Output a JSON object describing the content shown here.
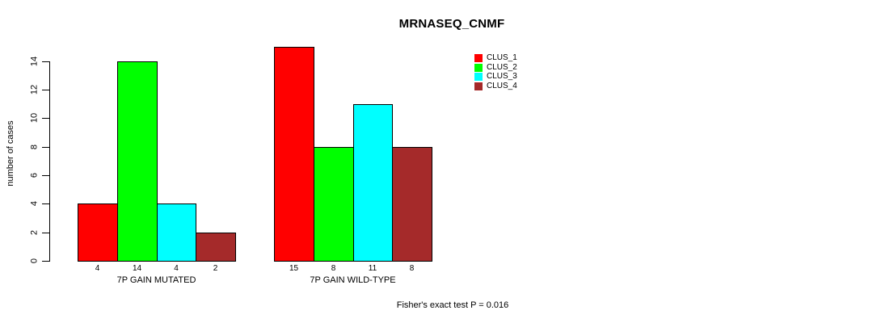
{
  "chart_data": {
    "type": "bar",
    "title": "MRNASEQ_CNMF",
    "ylabel": "number of cases",
    "xlabel": "",
    "groups": [
      "7P GAIN MUTATED",
      "7P GAIN WILD-TYPE"
    ],
    "series": [
      {
        "name": "CLUS_1",
        "color": "#FF0000",
        "values": [
          4,
          15
        ]
      },
      {
        "name": "CLUS_2",
        "color": "#00FF00",
        "values": [
          14,
          8
        ]
      },
      {
        "name": "CLUS_3",
        "color": "#00FFFF",
        "values": [
          4,
          11
        ]
      },
      {
        "name": "CLUS_4",
        "color": "#A52A2A",
        "values": [
          2,
          8
        ]
      }
    ],
    "bar_value_labels": [
      [
        4,
        14,
        4,
        2
      ],
      [
        15,
        8,
        11,
        8
      ]
    ],
    "yticks": [
      0,
      2,
      4,
      6,
      8,
      10,
      12,
      14
    ],
    "ylim": [
      0,
      15
    ],
    "grid": false,
    "legend_position": "top-right",
    "legend_entries": [
      "CLUS_1",
      "CLUS_2",
      "CLUS_3",
      "CLUS_4"
    ],
    "annotation": "Fisher's exact test P = 0.016",
    "axis_color": "#000000",
    "bar_border_color": "#000000"
  }
}
